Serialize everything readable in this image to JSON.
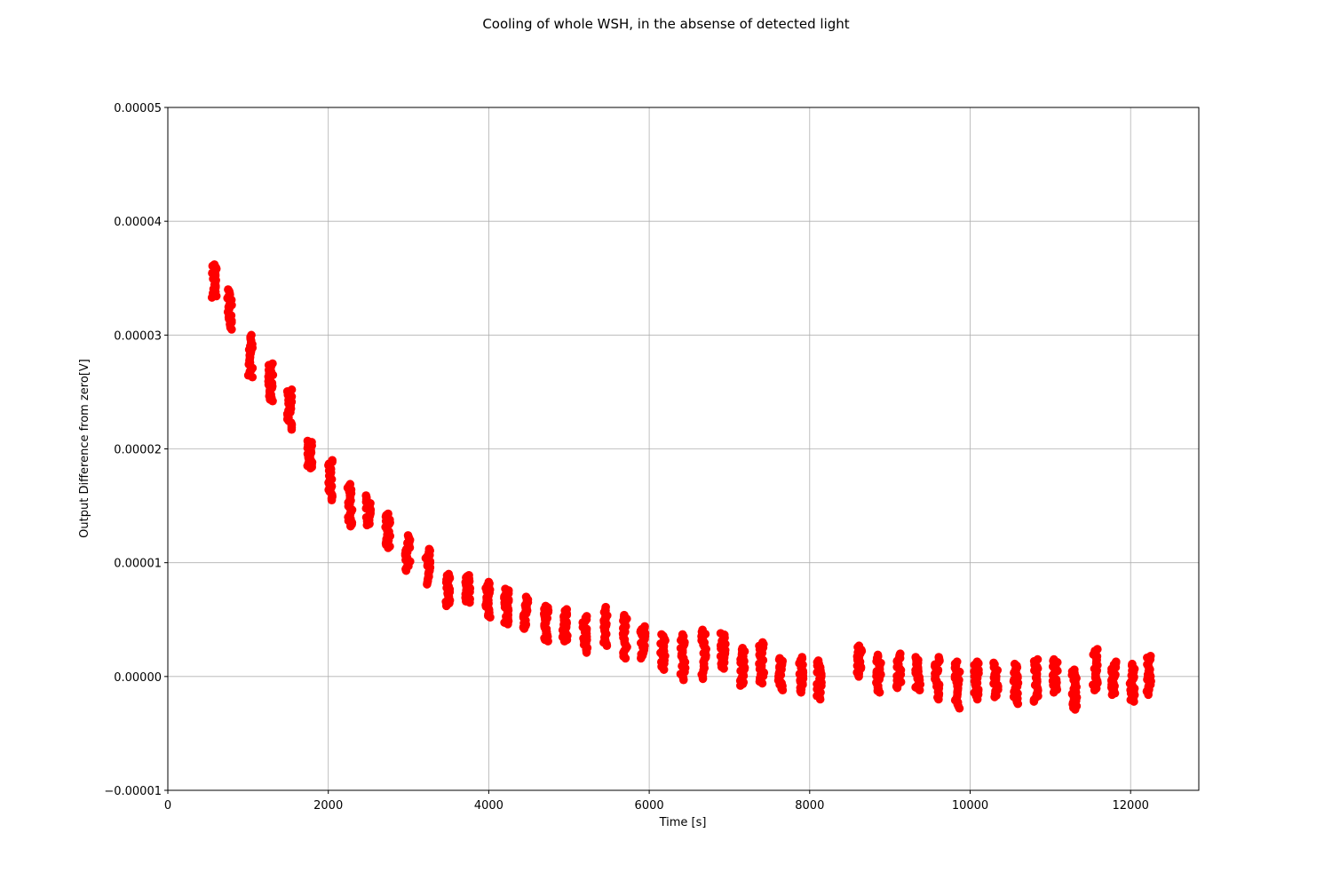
{
  "chart_data": {
    "type": "scatter",
    "title": "Cooling of whole WSH, in the absense of detected light",
    "xlabel": "Time [s]",
    "ylabel": "Output Difference from zero[V]",
    "xlim": [
      0,
      12850
    ],
    "ylim": [
      -1e-05,
      5e-05
    ],
    "xticks": [
      0,
      2000,
      4000,
      6000,
      8000,
      10000,
      12000
    ],
    "xtick_labels": [
      "0",
      "2000",
      "4000",
      "6000",
      "8000",
      "10000",
      "12000"
    ],
    "yticks": [
      -1e-05,
      0,
      1e-05,
      2e-05,
      3e-05,
      4e-05,
      5e-05
    ],
    "ytick_labels": [
      "−0.00001",
      "0.00000",
      "0.00001",
      "0.00002",
      "0.00003",
      "0.00004",
      "0.00005"
    ],
    "grid": true,
    "marker_color": "#ff0000",
    "series": [
      {
        "clusters": [
          {
            "x": 580,
            "y_min": 3.33e-05,
            "y_max": 3.62e-05
          },
          {
            "x": 770,
            "y_min": 3.05e-05,
            "y_max": 3.4e-05
          },
          {
            "x": 1030,
            "y_min": 2.63e-05,
            "y_max": 3e-05
          },
          {
            "x": 1280,
            "y_min": 2.42e-05,
            "y_max": 2.75e-05
          },
          {
            "x": 1520,
            "y_min": 2.17e-05,
            "y_max": 2.52e-05
          },
          {
            "x": 1770,
            "y_min": 1.83e-05,
            "y_max": 2.07e-05
          },
          {
            "x": 2020,
            "y_min": 1.55e-05,
            "y_max": 1.9e-05
          },
          {
            "x": 2270,
            "y_min": 1.32e-05,
            "y_max": 1.69e-05
          },
          {
            "x": 2500,
            "y_min": 1.33e-05,
            "y_max": 1.59e-05
          },
          {
            "x": 2740,
            "y_min": 1.13e-05,
            "y_max": 1.43e-05
          },
          {
            "x": 2990,
            "y_min": 9.3e-06,
            "y_max": 1.24e-05
          },
          {
            "x": 3240,
            "y_min": 8.1e-06,
            "y_max": 1.12e-05
          },
          {
            "x": 3490,
            "y_min": 6.2e-06,
            "y_max": 9e-06
          },
          {
            "x": 3740,
            "y_min": 6.5e-06,
            "y_max": 8.9e-06
          },
          {
            "x": 3990,
            "y_min": 5.2e-06,
            "y_max": 8.3e-06
          },
          {
            "x": 4220,
            "y_min": 4.6e-06,
            "y_max": 7.7e-06
          },
          {
            "x": 4460,
            "y_min": 4.2e-06,
            "y_max": 7e-06
          },
          {
            "x": 4720,
            "y_min": 3.1e-06,
            "y_max": 6.2e-06
          },
          {
            "x": 4950,
            "y_min": 3.1e-06,
            "y_max": 5.9e-06
          },
          {
            "x": 5200,
            "y_min": 2.1e-06,
            "y_max": 5.3e-06
          },
          {
            "x": 5450,
            "y_min": 2.7e-06,
            "y_max": 6.1e-06
          },
          {
            "x": 5700,
            "y_min": 1.6e-06,
            "y_max": 5.4e-06
          },
          {
            "x": 5920,
            "y_min": 1.6e-06,
            "y_max": 4.4e-06
          },
          {
            "x": 6170,
            "y_min": 6e-07,
            "y_max": 3.7e-06
          },
          {
            "x": 6420,
            "y_min": -3e-07,
            "y_max": 3.7e-06
          },
          {
            "x": 6680,
            "y_min": -2e-07,
            "y_max": 4.1e-06
          },
          {
            "x": 6920,
            "y_min": 7e-07,
            "y_max": 3.8e-06
          },
          {
            "x": 7160,
            "y_min": -8e-07,
            "y_max": 2.5e-06
          },
          {
            "x": 7400,
            "y_min": -6e-07,
            "y_max": 3e-06
          },
          {
            "x": 7640,
            "y_min": -1.2e-06,
            "y_max": 1.6e-06
          },
          {
            "x": 7890,
            "y_min": -1.4e-06,
            "y_max": 1.7e-06
          },
          {
            "x": 8120,
            "y_min": -2e-06,
            "y_max": 1.4e-06
          },
          {
            "x": 8620,
            "y_min": 0.0,
            "y_max": 2.7e-06
          },
          {
            "x": 8860,
            "y_min": -1.4e-06,
            "y_max": 1.9e-06
          },
          {
            "x": 9110,
            "y_min": -1e-06,
            "y_max": 2e-06
          },
          {
            "x": 9350,
            "y_min": -1.2e-06,
            "y_max": 1.7e-06
          },
          {
            "x": 9590,
            "y_min": -2e-06,
            "y_max": 1.7e-06
          },
          {
            "x": 9840,
            "y_min": -2.8e-06,
            "y_max": 1.3e-06
          },
          {
            "x": 10080,
            "y_min": -2e-06,
            "y_max": 1.3e-06
          },
          {
            "x": 10320,
            "y_min": -1.8e-06,
            "y_max": 1.2e-06
          },
          {
            "x": 10570,
            "y_min": -2.4e-06,
            "y_max": 1.1e-06
          },
          {
            "x": 10820,
            "y_min": -2.2e-06,
            "y_max": 1.5e-06
          },
          {
            "x": 11060,
            "y_min": -1.4e-06,
            "y_max": 1.5e-06
          },
          {
            "x": 11300,
            "y_min": -2.9e-06,
            "y_max": 6e-07
          },
          {
            "x": 11560,
            "y_min": -1.2e-06,
            "y_max": 2.4e-06
          },
          {
            "x": 11790,
            "y_min": -1.6e-06,
            "y_max": 1.3e-06
          },
          {
            "x": 12020,
            "y_min": -2.2e-06,
            "y_max": 1.1e-06
          },
          {
            "x": 12230,
            "y_min": -1.6e-06,
            "y_max": 1.8e-06
          }
        ]
      }
    ]
  }
}
